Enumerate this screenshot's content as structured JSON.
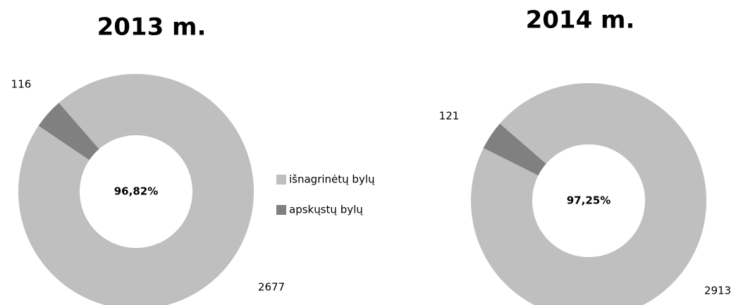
{
  "chart_data": [
    {
      "type": "donut",
      "title": "2013 m.",
      "categories": [
        "išnagrinėtų bylų",
        "apskųstų bylų"
      ],
      "values": [
        2677,
        116
      ],
      "colors": [
        "#bfbfbf",
        "#808080"
      ],
      "center_label": "96,82%",
      "legend": "right"
    },
    {
      "type": "donut",
      "title": "2014 m.",
      "values": [
        2913,
        121
      ],
      "colors": [
        "#bfbfbf",
        "#808080"
      ],
      "center_label": "97,25%"
    }
  ]
}
